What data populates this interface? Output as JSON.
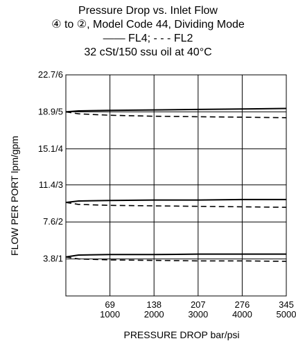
{
  "chart_data": {
    "type": "line",
    "title_lines": [
      "Pressure Drop vs. Inlet Flow",
      "④ to ②, Model Code 44, Dividing Mode",
      "—— FL4; - - - FL2",
      "32 cSt/150 ssu oil at 40°C"
    ],
    "xlabel": "PRESSURE DROP bar/psi",
    "ylabel": "FLOW PER PORT lpm/gpm",
    "xlim": [
      0,
      345
    ],
    "ylim": [
      0,
      22.7
    ],
    "x_ticks": [
      {
        "value": 69,
        "bar": "69",
        "psi": "1000"
      },
      {
        "value": 138,
        "bar": "138",
        "psi": "2000"
      },
      {
        "value": 207,
        "bar": "207",
        "psi": "3000"
      },
      {
        "value": 276,
        "bar": "276",
        "psi": "4000"
      },
      {
        "value": 345,
        "bar": "345",
        "psi": "5000"
      }
    ],
    "y_ticks": [
      {
        "value": 3.8,
        "label": "3.8/1"
      },
      {
        "value": 7.6,
        "label": "7.6/2"
      },
      {
        "value": 11.4,
        "label": "11.4/3"
      },
      {
        "value": 15.1,
        "label": "15.1/4"
      },
      {
        "value": 18.9,
        "label": "18.9/5"
      },
      {
        "value": 22.7,
        "label": "22.7/6"
      }
    ],
    "grid": true,
    "series": [
      {
        "name": "FL4",
        "style": "solid",
        "x": [
          0,
          20,
          69,
          138,
          207,
          276,
          345
        ],
        "values": [
          18.9,
          19.0,
          19.05,
          19.1,
          19.15,
          19.2,
          19.25
        ]
      },
      {
        "name": "FL2",
        "style": "dashed",
        "x": [
          0,
          20,
          69,
          138,
          207,
          276,
          345
        ],
        "values": [
          18.9,
          18.7,
          18.55,
          18.45,
          18.4,
          18.35,
          18.3
        ]
      },
      {
        "name": "FL4",
        "style": "solid",
        "x": [
          0,
          20,
          69,
          138,
          207,
          276,
          345
        ],
        "values": [
          9.6,
          9.75,
          9.8,
          9.85,
          9.85,
          9.9,
          9.9
        ]
      },
      {
        "name": "FL2",
        "style": "dashed",
        "x": [
          0,
          20,
          69,
          138,
          207,
          276,
          345
        ],
        "values": [
          9.6,
          9.4,
          9.3,
          9.25,
          9.2,
          9.15,
          9.1
        ]
      },
      {
        "name": "FL4",
        "style": "solid",
        "x": [
          0,
          20,
          69,
          138,
          207,
          276,
          345
        ],
        "values": [
          4.0,
          4.2,
          4.25,
          4.25,
          4.3,
          4.3,
          4.3
        ]
      },
      {
        "name": "FL2",
        "style": "dashed",
        "x": [
          0,
          20,
          69,
          138,
          207,
          276,
          345
        ],
        "values": [
          4.0,
          3.8,
          3.7,
          3.65,
          3.6,
          3.6,
          3.55
        ]
      }
    ],
    "line_color": "#000000",
    "grid_color": "#000000"
  }
}
